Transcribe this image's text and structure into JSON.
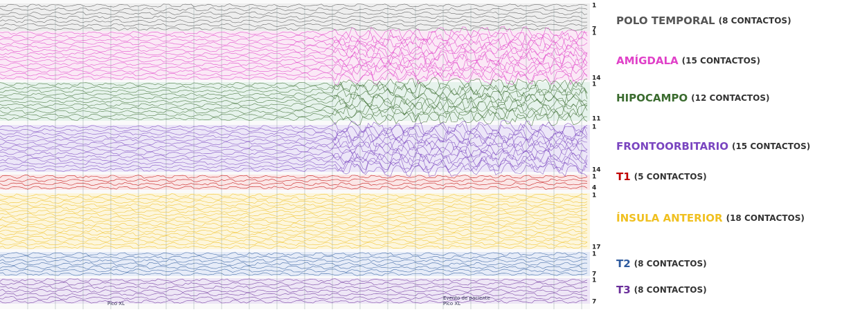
{
  "regions": [
    {
      "name": "POLO TEMPORAL",
      "count_label": "(8 CONTACTOS)",
      "color": "#555555",
      "first": 1,
      "last": 7
    },
    {
      "name": "AMÍGDALA",
      "count_label": "(15 CONTACTOS)",
      "color": "#e040c8",
      "first": 1,
      "last": 14
    },
    {
      "name": "HIPOCAMPO",
      "count_label": "(12 CONTACTOS)",
      "color": "#3a6b2e",
      "first": 1,
      "last": 11
    },
    {
      "name": "FRONTOORBITARIO",
      "count_label": "(15 CONTACTOS)",
      "color": "#7a45c0",
      "first": 1,
      "last": 14
    },
    {
      "name": "T1",
      "count_label": "(5 CONTACTOS)",
      "color": "#c00000",
      "first": 1,
      "last": 4
    },
    {
      "name": "ÍNSULA ANTERIOR",
      "count_label": "(18 CONTACTOS)",
      "color": "#f0c020",
      "first": 1,
      "last": 17
    },
    {
      "name": "T2",
      "count_label": "(8 CONTACTOS)",
      "color": "#2e5a9e",
      "first": 1,
      "last": 7
    },
    {
      "name": "T3",
      "count_label": "(8 CONTACTOS)",
      "color": "#6a2e9a",
      "first": 1,
      "last": 7
    }
  ],
  "annotations": [
    "Pico XL",
    "Evento de paciente",
    "Pico XL"
  ]
}
